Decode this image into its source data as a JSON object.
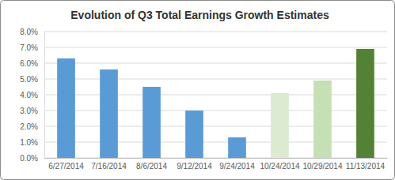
{
  "chart_data": {
    "type": "bar",
    "title": "Evolution of Q3 Total Earnings Growth Estimates",
    "categories": [
      "6/27/2014",
      "7/16/2014",
      "8/6/2014",
      "9/12/2014",
      "9/24/2014",
      "10/24/2014",
      "10/29/2014",
      "11/13/2014"
    ],
    "values": [
      6.3,
      5.6,
      4.5,
      3.0,
      1.3,
      4.1,
      4.9,
      6.9
    ],
    "colors": [
      "#5b9bd5",
      "#5b9bd5",
      "#5b9bd5",
      "#5b9bd5",
      "#5b9bd5",
      "#dbead0",
      "#c5e0b4",
      "#548235"
    ],
    "ylim": [
      0,
      8
    ],
    "yticks": [
      {
        "value": 0,
        "label": "0.0%"
      },
      {
        "value": 1,
        "label": "1.0%"
      },
      {
        "value": 2,
        "label": "2.0%"
      },
      {
        "value": 3,
        "label": "3.0%"
      },
      {
        "value": 4,
        "label": "4.0%"
      },
      {
        "value": 5,
        "label": "5.0%"
      },
      {
        "value": 6,
        "label": "6.0%"
      },
      {
        "value": 7,
        "label": "7.0%"
      },
      {
        "value": 8,
        "label": "8.0%"
      }
    ],
    "grid": true
  }
}
